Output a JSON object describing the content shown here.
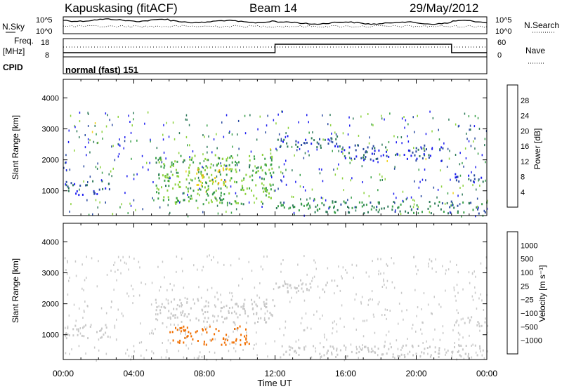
{
  "header": {
    "station": "Kapuskasing (fitACF)",
    "beam": "Beam 14",
    "date": "29/May/2012"
  },
  "noise_panel": {
    "left_label": "N.Sky",
    "right_label": "N.Search",
    "left_ticks": [
      "10^5",
      "10^0"
    ],
    "right_ticks": [
      "10^5",
      "10^0"
    ]
  },
  "freq_panel": {
    "left_label_1": "Freq.",
    "left_label_2": "[MHz]",
    "right_label": "Nave",
    "left_ticks": [
      "18",
      "8"
    ],
    "right_ticks": [
      "60",
      "0"
    ]
  },
  "cpid": {
    "label": "CPID",
    "value": "normal (fast) 151"
  },
  "colors": {
    "power": [
      "#1e1ef0",
      "#2a4aa0",
      "#2f7a5a",
      "#3aa04a",
      "#8cd23c",
      "#f0d21e",
      "#f5a000",
      "#f06e00",
      "#e01414"
    ],
    "velocity": [
      "#e01414",
      "#f06e00",
      "#f5a000",
      "#c8c8c8",
      "#c8c8c8",
      "#8cd23c",
      "#3a8a3a",
      "#2a4aa0",
      "#1e1ef0"
    ]
  },
  "chart_data": [
    {
      "type": "heatmap",
      "name": "power",
      "ylabel": "Slant Range [km]",
      "yticks": [
        "4000",
        "3000",
        "2000",
        "1000"
      ],
      "ylim": [
        200,
        4600
      ],
      "colorbar_label": "Power [dB]",
      "colorbar_ticks": [
        "28",
        "24",
        "20",
        "16",
        "12",
        "8",
        "4"
      ],
      "clim": [
        0,
        32
      ],
      "echo_regions": [
        {
          "t0": 0.0,
          "t1": 2.6,
          "r0": 900,
          "r1": 1350,
          "value": 6
        },
        {
          "t0": 5.2,
          "t1": 12.0,
          "r0": 600,
          "r1": 2200,
          "value": 14
        },
        {
          "t0": 7.5,
          "t1": 9.5,
          "r0": 1200,
          "r1": 1800,
          "value": 19
        },
        {
          "t0": 12.0,
          "t1": 15.5,
          "r0": 2400,
          "r1": 2800,
          "value": 6
        },
        {
          "t0": 15.5,
          "t1": 21.5,
          "r0": 2000,
          "r1": 2500,
          "value": 5
        },
        {
          "t0": 12.0,
          "t1": 24.0,
          "r0": 300,
          "r1": 700,
          "value": 10
        },
        {
          "t0": 22.0,
          "t1": 24.0,
          "r0": 1300,
          "r1": 1600,
          "value": 6
        }
      ]
    },
    {
      "type": "heatmap",
      "name": "velocity",
      "ylabel": "Slant Range [km]",
      "yticks": [
        "4000",
        "3000",
        "2000",
        "1000"
      ],
      "ylim": [
        200,
        4600
      ],
      "colorbar_label": "Velocity [m s⁻¹]",
      "colorbar_ticks": [
        "1000",
        "500",
        "100",
        "25",
        "−25",
        "−100",
        "−500",
        "−1000"
      ],
      "echo_regions": [
        {
          "t0": 0.0,
          "t1": 2.6,
          "r0": 900,
          "r1": 1350,
          "value": 0
        },
        {
          "t0": 5.2,
          "t1": 12.0,
          "r0": 1400,
          "r1": 2200,
          "value": 0
        },
        {
          "t0": 6.0,
          "t1": 10.5,
          "r0": 700,
          "r1": 1300,
          "value": -300
        },
        {
          "t0": 12.0,
          "t1": 15.5,
          "r0": 2400,
          "r1": 2800,
          "value": 0
        },
        {
          "t0": 12.0,
          "t1": 24.0,
          "r0": 300,
          "r1": 700,
          "value": 0
        },
        {
          "t0": 22.0,
          "t1": 24.0,
          "r0": 1300,
          "r1": 1600,
          "value": 0
        }
      ]
    }
  ],
  "xaxis": {
    "label": "Time UT",
    "ticks": [
      "00:00",
      "04:00",
      "08:00",
      "12:00",
      "16:00",
      "20:00",
      "00:00"
    ],
    "xlim": [
      0,
      24
    ]
  }
}
